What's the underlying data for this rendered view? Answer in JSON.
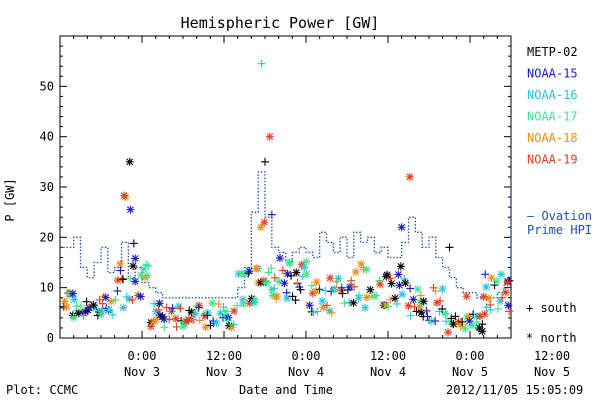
{
  "chart_data": {
    "type": "scatter",
    "title": "Hemispheric Power [GW]",
    "ylabel": "P [GW]",
    "xlabel": "Date and Time",
    "ylim": [
      0,
      60
    ],
    "yticks": [
      0,
      10,
      20,
      30,
      40,
      50
    ],
    "x_unit": "hours since 2012/11/02 12:00",
    "xlim": [
      12,
      78
    ],
    "xticks": [
      {
        "x": 24,
        "time": "0:00",
        "date": "Nov 3"
      },
      {
        "x": 36,
        "time": "12:00",
        "date": "Nov 3"
      },
      {
        "x": 48,
        "time": "0:00",
        "date": "Nov 4"
      },
      {
        "x": 60,
        "time": "12:00",
        "date": "Nov 4"
      },
      {
        "x": 72,
        "time": "0:00",
        "date": "Nov 5"
      },
      {
        "x": 84,
        "time": "12:00",
        "date": "Nov 5"
      }
    ],
    "legend_position": "right",
    "series": [
      {
        "name": "METP-02",
        "color": "#000000"
      },
      {
        "name": "NOAA-15",
        "color": "#1a1acc"
      },
      {
        "name": "NOAA-16",
        "color": "#1ec8dc"
      },
      {
        "name": "NOAA-17",
        "color": "#3ce68c"
      },
      {
        "name": "NOAA-18",
        "color": "#f08c14"
      },
      {
        "name": "NOAA-19",
        "color": "#e63c1e"
      }
    ],
    "symbols": {
      "south": "+",
      "north": "*"
    },
    "ovation": {
      "name": "— Ovation Prime HPI",
      "label_line1": "— Ovation",
      "label_line2": "Prime HPI",
      "color": "#1f4fb4"
    }
  },
  "footer": {
    "left": "Plot: CCMC",
    "center": "Date and Time",
    "right": "2012/11/05 15:05:09"
  },
  "legend_symbols": {
    "south_label": "+ south",
    "north_label": "* north"
  }
}
